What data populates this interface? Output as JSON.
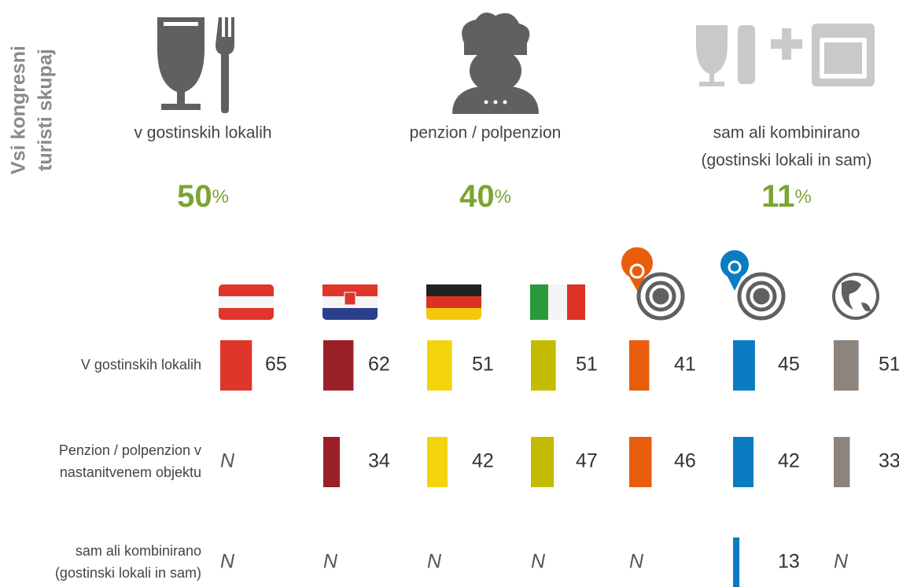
{
  "side_label": [
    "Vsi kongresni",
    "turisti skupaj"
  ],
  "summary": [
    {
      "label": [
        "v gostinskih lokalih"
      ],
      "value": 50,
      "unit": "%"
    },
    {
      "label": [
        "penzion / polpenzion"
      ],
      "value": 40,
      "unit": "%"
    },
    {
      "label": [
        "sam ali kombinirano",
        "(gostinski lokali in sam)"
      ],
      "value": 11,
      "unit": "%"
    }
  ],
  "columns": [
    {
      "icon": "austria",
      "color": "#e0352b"
    },
    {
      "icon": "croatia",
      "color": "#9b1f27"
    },
    {
      "icon": "germany",
      "color": "#f3d40c"
    },
    {
      "icon": "italy",
      "color": "#c4bc00"
    },
    {
      "icon": "target-orange",
      "color": "#e85d0c"
    },
    {
      "icon": "target-blue",
      "color": "#0a7cc1"
    },
    {
      "icon": "globe",
      "color": "#8c847d"
    }
  ],
  "rows": [
    {
      "label": [
        "V gostinskih lokalih"
      ],
      "values": [
        65,
        62,
        51,
        51,
        41,
        45,
        51
      ]
    },
    {
      "label": [
        "Penzion / polpenzion v",
        "nastanitvenem objektu"
      ],
      "values": [
        "N",
        34,
        42,
        47,
        46,
        42,
        33
      ]
    },
    {
      "label": [
        "sam ali kombinirano",
        "(gostinski lokali in sam)"
      ],
      "values": [
        "N",
        "N",
        "N",
        "N",
        "N",
        13,
        "N"
      ]
    }
  ]
}
